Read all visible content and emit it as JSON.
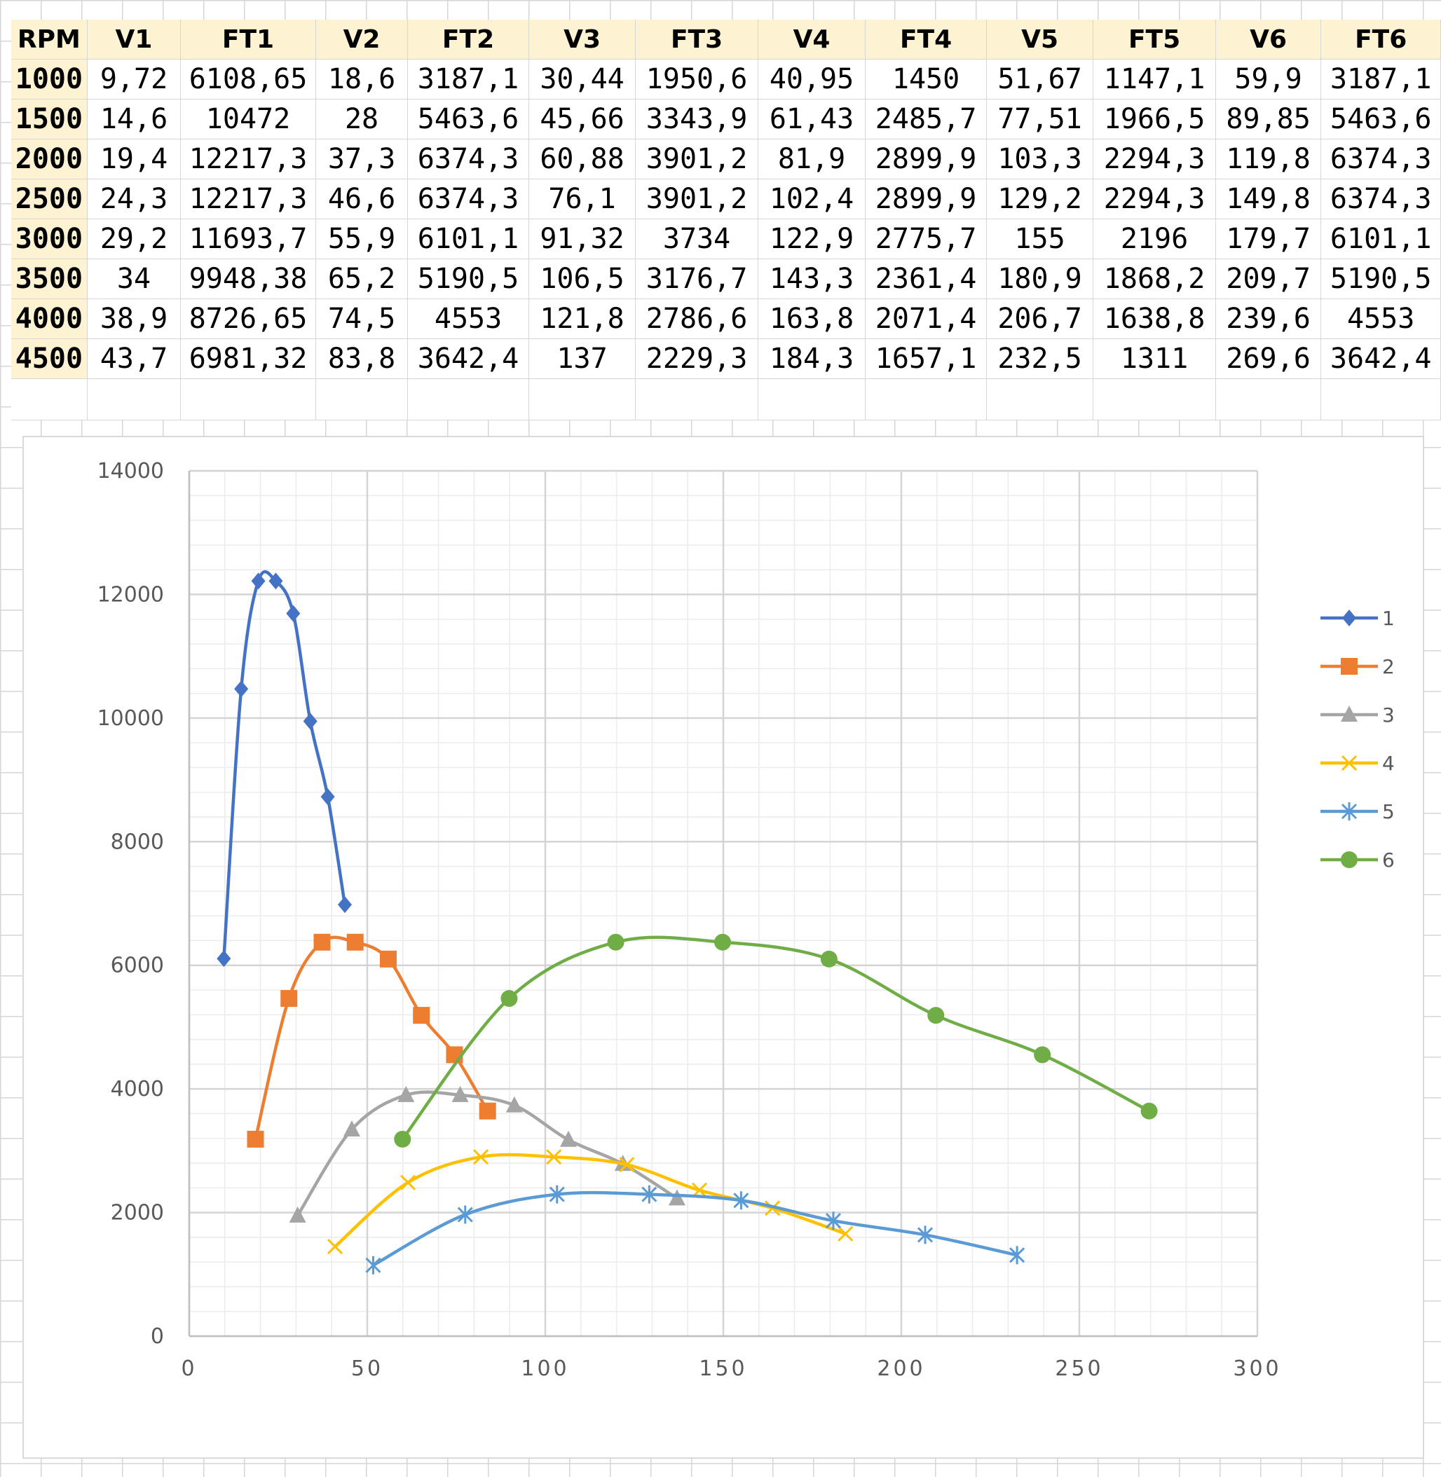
{
  "table": {
    "headers": [
      "RPM",
      "V1",
      "FT1",
      "V2",
      "FT2",
      "V3",
      "FT3",
      "V4",
      "FT4",
      "V5",
      "FT5",
      "V6",
      "FT6"
    ],
    "rows": [
      [
        "1000",
        "9,72",
        "6108,65",
        "18,6",
        "3187,1",
        "30,44",
        "1950,6",
        "40,95",
        "1450",
        "51,67",
        "1147,1",
        "59,9",
        "3187,1"
      ],
      [
        "1500",
        "14,6",
        "10472",
        "28",
        "5463,6",
        "45,66",
        "3343,9",
        "61,43",
        "2485,7",
        "77,51",
        "1966,5",
        "89,85",
        "5463,6"
      ],
      [
        "2000",
        "19,4",
        "12217,3",
        "37,3",
        "6374,3",
        "60,88",
        "3901,2",
        "81,9",
        "2899,9",
        "103,3",
        "2294,3",
        "119,8",
        "6374,3"
      ],
      [
        "2500",
        "24,3",
        "12217,3",
        "46,6",
        "6374,3",
        "76,1",
        "3901,2",
        "102,4",
        "2899,9",
        "129,2",
        "2294,3",
        "149,8",
        "6374,3"
      ],
      [
        "3000",
        "29,2",
        "11693,7",
        "55,9",
        "6101,1",
        "91,32",
        "3734",
        "122,9",
        "2775,7",
        "155",
        "2196",
        "179,7",
        "6101,1"
      ],
      [
        "3500",
        "34",
        "9948,38",
        "65,2",
        "5190,5",
        "106,5",
        "3176,7",
        "143,3",
        "2361,4",
        "180,9",
        "1868,2",
        "209,7",
        "5190,5"
      ],
      [
        "4000",
        "38,9",
        "8726,65",
        "74,5",
        "4553",
        "121,8",
        "2786,6",
        "163,8",
        "2071,4",
        "206,7",
        "1638,8",
        "239,6",
        "4553"
      ],
      [
        "4500",
        "43,7",
        "6981,32",
        "83,8",
        "3642,4",
        "137",
        "2229,3",
        "184,3",
        "1657,1",
        "232,5",
        "1311",
        "269,6",
        "3642,4"
      ]
    ]
  },
  "chart_data": {
    "type": "scatter",
    "title": "",
    "xlabel": "",
    "ylabel": "",
    "xlim": [
      0,
      300
    ],
    "ylim": [
      0,
      14000
    ],
    "x_ticks": [
      0,
      50,
      100,
      150,
      200,
      250,
      300
    ],
    "y_ticks": [
      0,
      2000,
      4000,
      6000,
      8000,
      10000,
      12000,
      14000
    ],
    "grid": true,
    "smooth_lines": true,
    "legend_position": "right",
    "series": [
      {
        "name": "1",
        "color": "#4472c4",
        "marker": "diamond",
        "x": [
          9.72,
          14.6,
          19.4,
          24.3,
          29.2,
          34,
          38.9,
          43.7
        ],
        "y": [
          6108.65,
          10472,
          12217.3,
          12217.3,
          11693.7,
          9948.38,
          8726.65,
          6981.32
        ]
      },
      {
        "name": "2",
        "color": "#ed7d31",
        "marker": "square",
        "x": [
          18.6,
          28,
          37.3,
          46.6,
          55.9,
          65.2,
          74.5,
          83.8
        ],
        "y": [
          3187.1,
          5463.6,
          6374.3,
          6374.3,
          6101.1,
          5190.5,
          4553,
          3642.4
        ]
      },
      {
        "name": "3",
        "color": "#a5a5a5",
        "marker": "triangle",
        "x": [
          30.44,
          45.66,
          60.88,
          76.1,
          91.32,
          106.5,
          121.8,
          137
        ],
        "y": [
          1950.6,
          3343.9,
          3901.2,
          3901.2,
          3734,
          3176.7,
          2786.6,
          2229.3
        ]
      },
      {
        "name": "4",
        "color": "#ffc000",
        "marker": "x",
        "x": [
          40.95,
          61.43,
          81.9,
          102.4,
          122.9,
          143.3,
          163.8,
          184.3
        ],
        "y": [
          1450,
          2485.7,
          2899.9,
          2899.9,
          2775.7,
          2361.4,
          2071.4,
          1657.1
        ]
      },
      {
        "name": "5",
        "color": "#5b9bd5",
        "marker": "star",
        "x": [
          51.67,
          77.51,
          103.3,
          129.2,
          155,
          180.9,
          206.7,
          232.5
        ],
        "y": [
          1147.1,
          1966.5,
          2294.3,
          2294.3,
          2196,
          1868.2,
          1638.8,
          1311
        ]
      },
      {
        "name": "6",
        "color": "#70ad47",
        "marker": "circle",
        "x": [
          59.9,
          89.85,
          119.8,
          149.8,
          179.7,
          209.7,
          239.6,
          269.6
        ],
        "y": [
          3187.1,
          5463.6,
          6374.3,
          6374.3,
          6101.1,
          5190.5,
          4553,
          3642.4
        ]
      }
    ]
  }
}
